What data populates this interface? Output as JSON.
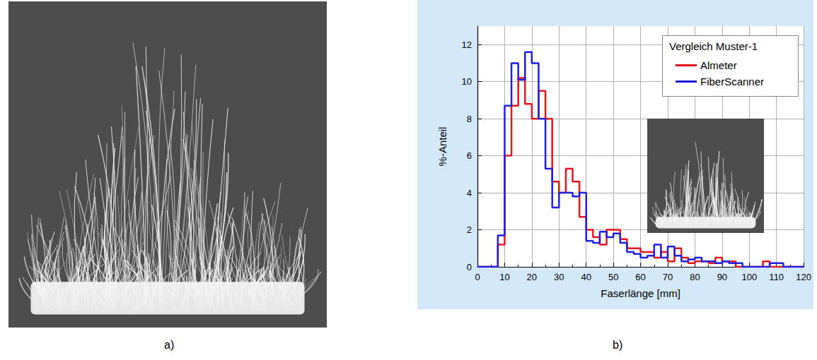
{
  "figure": {
    "panel_labels": [
      "a)",
      "b)"
    ]
  },
  "chart_data": {
    "type": "histogram",
    "x_label": "Faserlänge [mm]",
    "y_label": "%-Anteil",
    "annotations": [
      "Vergleich Muster-1"
    ],
    "bins": [
      0,
      2.5,
      5,
      7.5,
      10,
      12.5,
      15,
      17.5,
      20,
      22.5,
      25,
      27.5,
      30,
      32.5,
      35,
      37.5,
      40,
      42.5,
      45,
      47.5,
      50,
      52.5,
      55,
      57.5,
      60,
      62.5,
      65,
      67.5,
      70,
      72.5,
      75,
      77.5,
      80,
      82.5,
      85,
      87.5,
      90,
      92.5,
      95,
      97.5,
      100,
      102.5,
      105,
      107.5,
      110,
      112.5,
      115,
      117.5,
      120
    ],
    "series": [
      {
        "name": "Almeter",
        "color": "#e8141b",
        "values": [
          0,
          0,
          0,
          1.2,
          6.0,
          8.7,
          10.2,
          8.8,
          8.0,
          9.5,
          8.0,
          4.6,
          4.0,
          5.3,
          4.6,
          2.7,
          2.0,
          1.6,
          1.2,
          2.0,
          2.0,
          1.5,
          1.0,
          1.0,
          0.8,
          0.8,
          0.5,
          0.8,
          0.3,
          1.0,
          0.5,
          0.2,
          0.3,
          0.3,
          0.2,
          0.5,
          0.3,
          0.3,
          0,
          0,
          0,
          0,
          0.3,
          0,
          0,
          0,
          0,
          0
        ]
      },
      {
        "name": "FiberScanner",
        "color": "#1f1fe0",
        "values": [
          0,
          0,
          0,
          1.7,
          8.7,
          11.0,
          10.1,
          11.6,
          11.0,
          8.0,
          5.3,
          3.2,
          4.0,
          4.0,
          3.8,
          4.0,
          1.4,
          1.3,
          1.9,
          1.6,
          1.8,
          1.3,
          0.8,
          0.7,
          0.5,
          0.6,
          1.2,
          0.5,
          1.1,
          0.6,
          0.3,
          0.4,
          0.5,
          0.3,
          0.3,
          0.2,
          0.3,
          0.2,
          0.2,
          0,
          0,
          0,
          0,
          0.2,
          0.2,
          0,
          0,
          0
        ]
      }
    ],
    "xlim": [
      0,
      120
    ],
    "xticks": [
      0,
      10,
      20,
      30,
      40,
      50,
      60,
      70,
      80,
      90,
      100,
      110,
      120
    ],
    "ylim": [
      0,
      13
    ],
    "yticks": [
      0,
      2,
      4,
      6,
      8,
      10,
      12
    ],
    "grid": true,
    "legend": "upper right"
  }
}
